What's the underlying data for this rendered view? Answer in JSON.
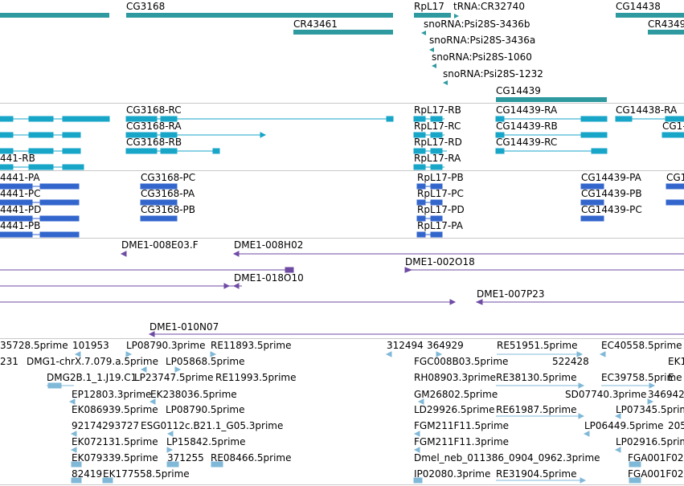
{
  "colors": {
    "gene": "#2e9aa0",
    "transcript": "#17a5c8",
    "cds": "#3366cc",
    "clone": "#6e4aa3",
    "est": "#80b8d8",
    "separator": "#c8c8c8"
  },
  "tracks": {
    "genes": {
      "labels": [
        "CG3168",
        "CR43461",
        "RpL17",
        "tRNA:CR32740",
        "CG14438",
        "CR4349",
        "snoRNA:Psi28S-3436b",
        "snoRNA:Psi28S-3436a",
        "snoRNA:Psi28S-1060",
        "snoRNA:Psi28S-1232",
        "CG14439"
      ]
    },
    "transcripts": {
      "labels": [
        "CG3168-RC",
        "RpL17-RB",
        "CG14439-RA",
        "CG14438-RA",
        "CG3168-RA",
        "RpL17-RC",
        "CG14439-RB",
        "CG1-",
        "CG3168-RB",
        "RpL17-RD",
        "CG14439-RC",
        "441-RB",
        "RpL17-RA"
      ]
    },
    "cds": {
      "labels": [
        "4441-PA",
        "CG3168-PC",
        "RpL17-PB",
        "CG14439-PA",
        "CG1",
        "4441-PC",
        "CG3168-PA",
        "RpL17-PC",
        "CG14439-PB",
        "4441-PD",
        "CG3168-PB",
        "RpL17-PD",
        "CG14439-PC",
        "4441-PB",
        "RpL17-PA"
      ]
    },
    "clones": {
      "labels": [
        "DME1-008E03.F",
        "DME1-008H02",
        "DME1-002O18",
        "DME1-018O10",
        "DME1-007P23",
        "DME1-010N07"
      ]
    },
    "ests": {
      "labels": [
        "35728.5prime",
        "101953",
        "LP08790.3prime",
        "RE11893.5prime",
        "312494",
        "364929",
        "RE51951.5prime",
        "EC40558.5prime",
        "EK1",
        "231",
        "DMG1-chrX.7.079.a.5prime",
        "LP05868.5prime",
        "FGC008B03.5prime",
        "522428",
        "DMG2B.1_1.J19.C1",
        "LP23747.5prime",
        "RE11993.5prime",
        "RH08903.3prime",
        "RE38130.5prime",
        "EC39758.5prime",
        "E",
        "EP12803.3prime",
        "EK238036.5prime",
        "GM26802.5prime",
        "SD07740.3prime",
        "346942",
        "EK086939.5prime",
        "LP08790.5prime",
        "LD29926.5prime",
        "RE61987.5prime",
        "LP07345.5prime",
        "92174293727",
        "ESG0112c.B21.1_G05.3prime",
        "FGM211F11.5prime",
        "LP06449.5prime",
        "205",
        "EK072131.5prime",
        "LP15842.5prime",
        "FGM211F11.3prime",
        "LP02916.5prime",
        "EK079339.5prime",
        "371255",
        "RE08466.5prime",
        "Dmel_neb_011386_0904_0962.3prime",
        "FGA001F02",
        "82419",
        "EK177558.5prime",
        "IP02080.3prime",
        "RE31904.5prime",
        "FGA001F02"
      ]
    }
  }
}
